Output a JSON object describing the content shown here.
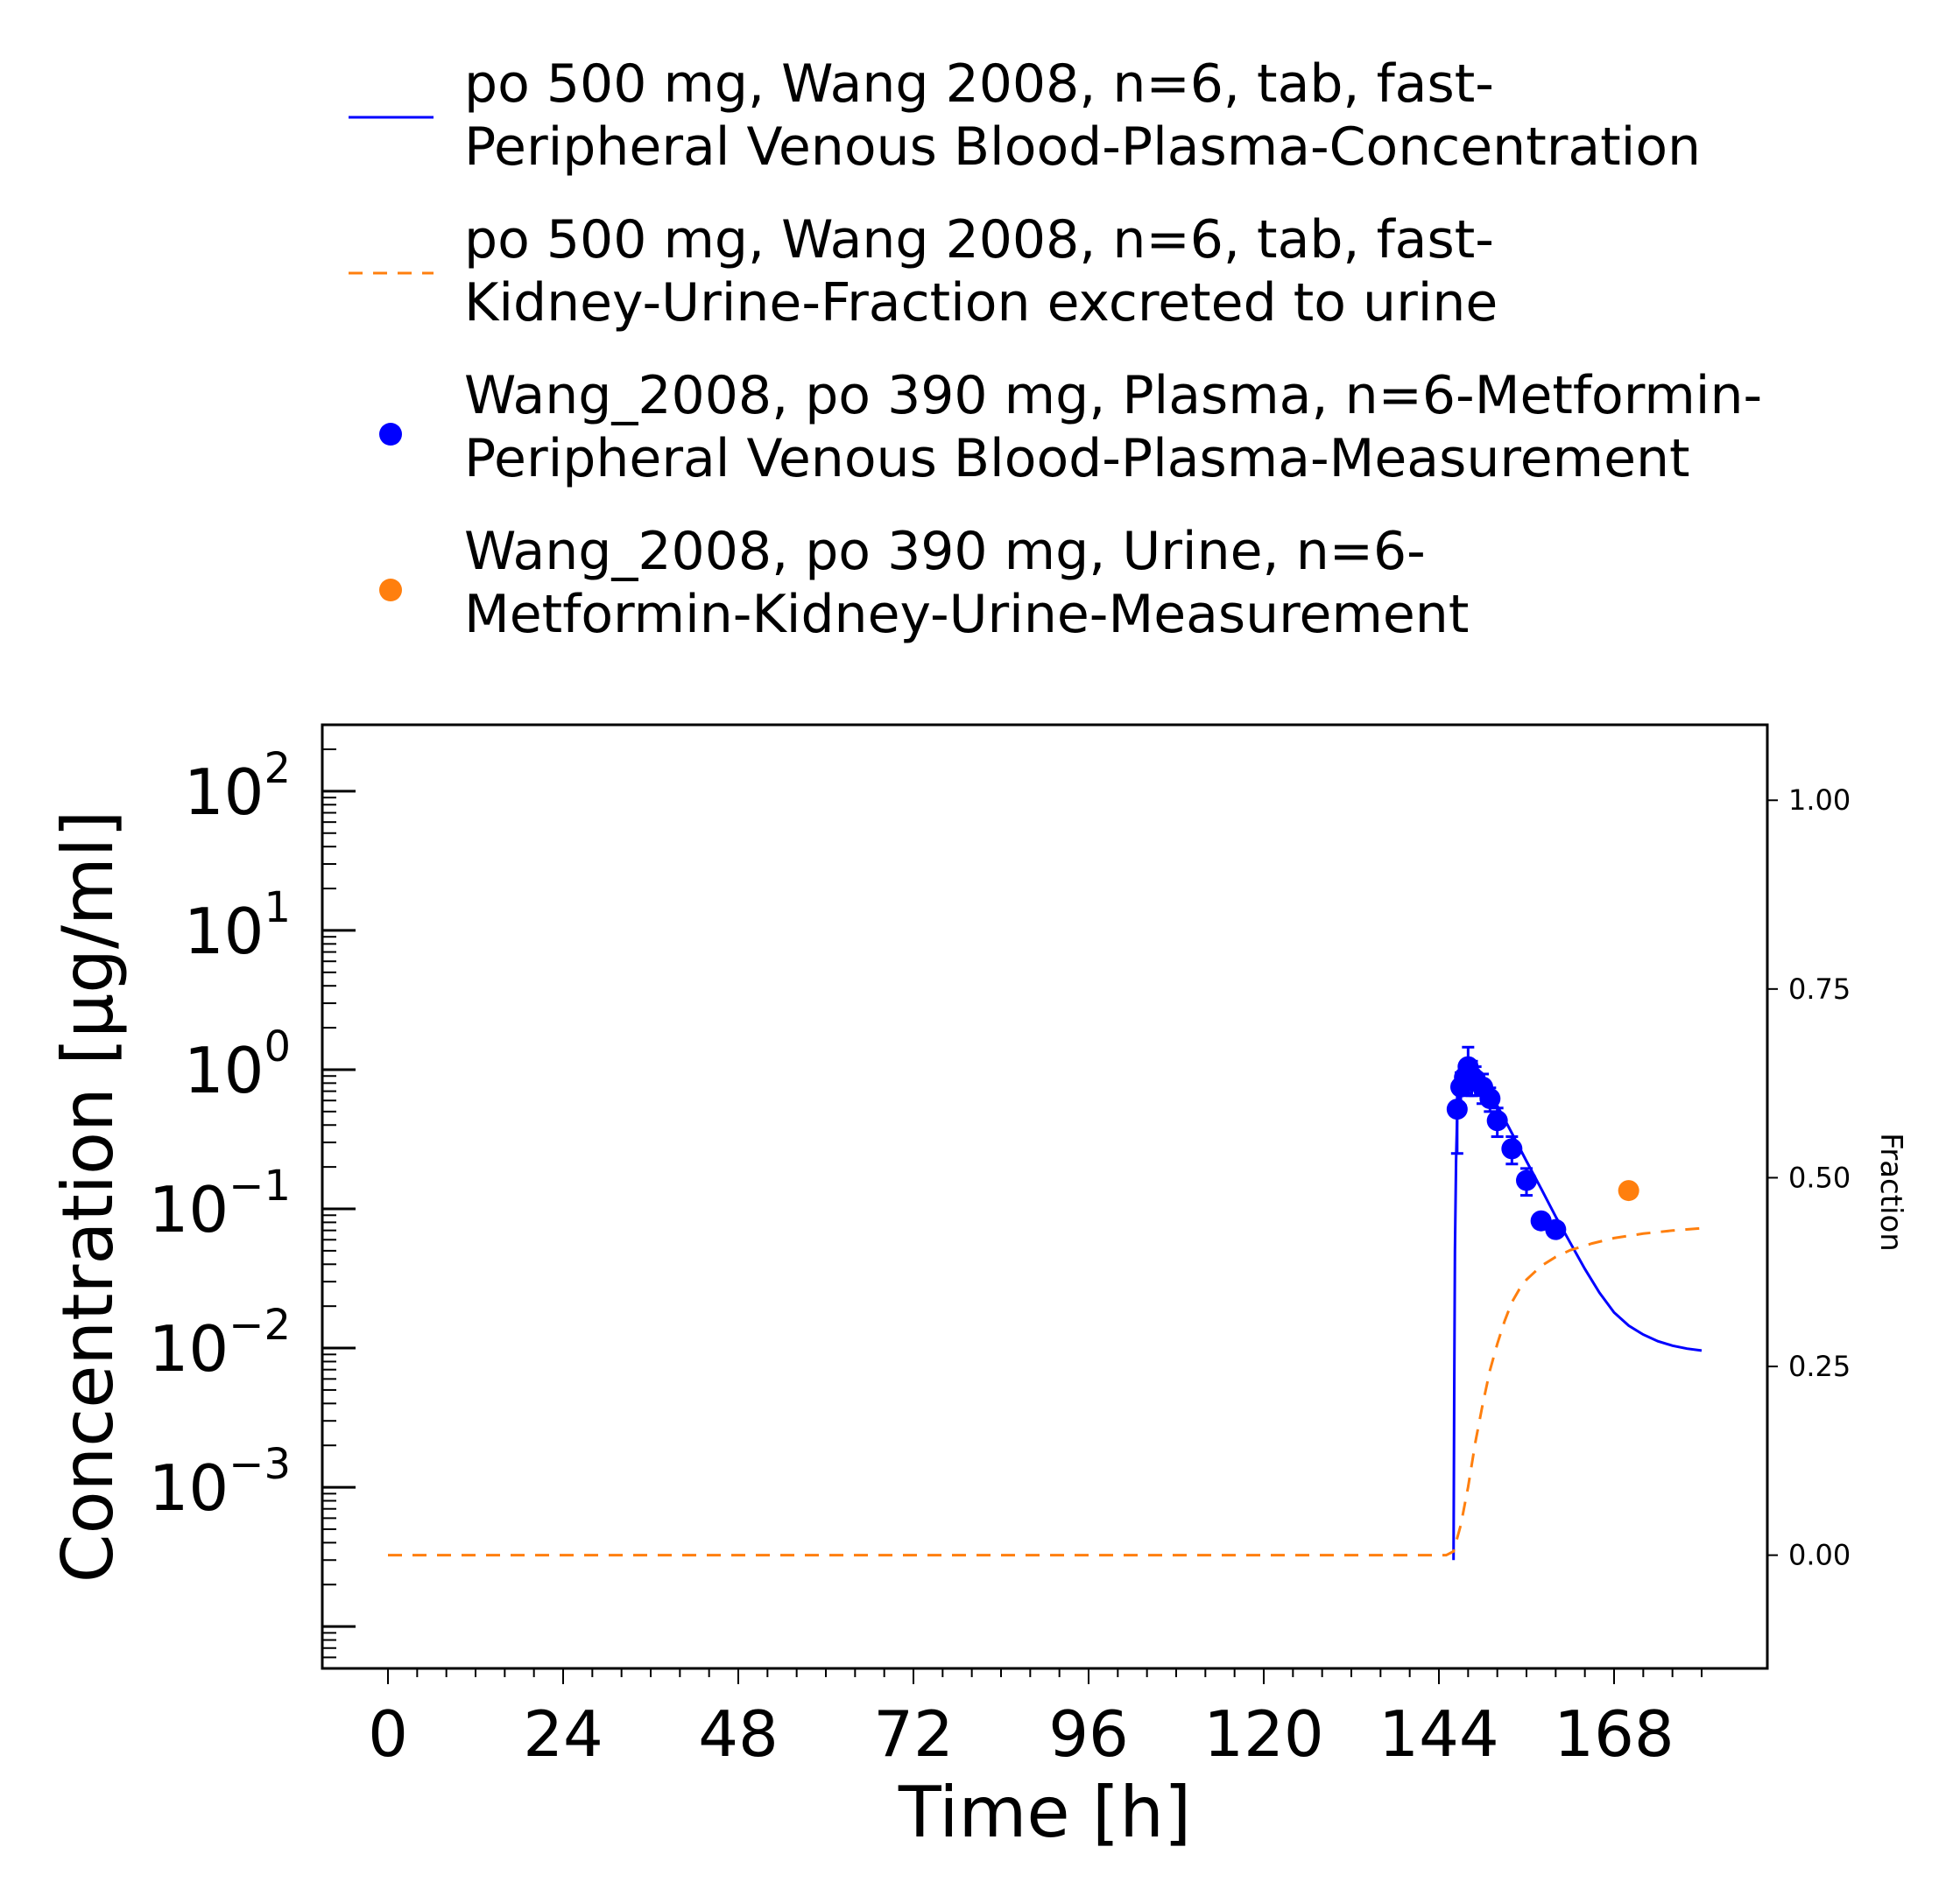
{
  "chart_data": {
    "type": "line",
    "xlabel": "Time [h]",
    "ylabel": "Concentration [µg/ml]",
    "y2label": "Fraction",
    "xlim": [
      -9,
      189
    ],
    "ylim": [
      5e-05,
      300
    ],
    "yscale": "log",
    "y2lim": [
      -0.15,
      1.1
    ],
    "x_ticks": [
      0,
      24,
      48,
      72,
      96,
      120,
      144,
      168
    ],
    "y_ticks": [
      {
        "value": 100,
        "base": "10",
        "exp": "2"
      },
      {
        "value": 10,
        "base": "10",
        "exp": "1"
      },
      {
        "value": 1,
        "base": "10",
        "exp": "0"
      },
      {
        "value": 0.1,
        "base": "10",
        "exp": "−1"
      },
      {
        "value": 0.01,
        "base": "10",
        "exp": "−2"
      },
      {
        "value": 0.001,
        "base": "10",
        "exp": "−3"
      }
    ],
    "y2_ticks": [
      {
        "value": 1.0,
        "label": "1.00"
      },
      {
        "value": 0.75,
        "label": "0.75"
      },
      {
        "value": 0.5,
        "label": "0.50"
      },
      {
        "value": 0.25,
        "label": "0.25"
      },
      {
        "value": 0.0,
        "label": "0.00"
      }
    ],
    "grid": false,
    "legend_position": "top",
    "series": [
      {
        "name": "po 500 mg, Wang 2008, n=6, tab, fast-\nPeripheral Venous Blood-Plasma-Concentration",
        "name_lines": [
          "po 500 mg, Wang 2008, n=6, tab, fast-",
          "Peripheral Venous Blood-Plasma-Concentration"
        ],
        "kind": "line",
        "axis": "left",
        "color": "#0000ff",
        "style": "solid",
        "x": [
          146.0,
          146.1,
          146.2,
          146.35,
          146.5,
          146.75,
          147.0,
          147.5,
          148.0,
          148.5,
          149.0,
          150.0,
          151.0,
          152.0,
          153.0,
          154.0,
          156.0,
          158.0,
          160.0,
          162.0,
          164.0,
          166.0,
          168.0,
          170.0,
          172.0,
          174.0,
          176.0,
          178.0,
          180.0
        ],
        "y": [
          0.0003,
          0.005,
          0.05,
          0.22,
          0.45,
          0.66,
          0.8,
          0.93,
          0.98,
          0.97,
          0.93,
          0.82,
          0.68,
          0.55,
          0.44,
          0.35,
          0.22,
          0.14,
          0.088,
          0.057,
          0.037,
          0.025,
          0.018,
          0.0145,
          0.0125,
          0.0112,
          0.0104,
          0.0099,
          0.0096
        ]
      },
      {
        "name": "po 500 mg, Wang 2008, n=6, tab, fast-\nKidney-Urine-Fraction excreted to urine",
        "name_lines": [
          "po 500 mg, Wang 2008, n=6, tab, fast-",
          "Kidney-Urine-Fraction excreted to urine"
        ],
        "kind": "line",
        "axis": "right",
        "color": "#ff7f0e",
        "style": "dashed",
        "x": [
          0,
          145,
          146,
          147,
          148,
          149,
          150,
          151,
          152,
          153,
          154,
          155,
          156,
          158,
          160,
          162,
          165,
          168,
          172,
          176,
          180
        ],
        "y": [
          0.0,
          0.0,
          0.005,
          0.04,
          0.09,
          0.15,
          0.2,
          0.245,
          0.28,
          0.31,
          0.335,
          0.352,
          0.365,
          0.383,
          0.395,
          0.404,
          0.413,
          0.42,
          0.426,
          0.43,
          0.433
        ]
      },
      {
        "name": "Wang_2008, po 390 mg, Plasma, n=6-Metformin-\nPeripheral Venous Blood-Plasma-Measurement",
        "name_lines": [
          "Wang_2008, po 390 mg, Plasma, n=6-Metformin-",
          "Peripheral Venous Blood-Plasma-Measurement"
        ],
        "kind": "scatter",
        "axis": "left",
        "color": "#0000ff",
        "points": [
          {
            "x": 146.5,
            "y": 0.52,
            "err": 0.27
          },
          {
            "x": 147.0,
            "y": 0.75,
            "err": 0.2
          },
          {
            "x": 147.5,
            "y": 0.88,
            "err": 0.2
          },
          {
            "x": 148.0,
            "y": 1.05,
            "err": 0.4
          },
          {
            "x": 148.5,
            "y": 0.9,
            "err": 0.25
          },
          {
            "x": 149.0,
            "y": 0.85,
            "err": 0.2
          },
          {
            "x": 150.0,
            "y": 0.75,
            "err": 0.18
          },
          {
            "x": 151.0,
            "y": 0.62,
            "err": 0.12
          },
          {
            "x": 152.0,
            "y": 0.43,
            "err": 0.1
          },
          {
            "x": 154.0,
            "y": 0.27,
            "err": 0.06
          },
          {
            "x": 156.0,
            "y": 0.16,
            "err": 0.035
          },
          {
            "x": 158.0,
            "y": 0.082,
            "err": 0.008
          },
          {
            "x": 160.0,
            "y": 0.071,
            "err": 0.006
          }
        ]
      },
      {
        "name": "Wang_2008, po 390 mg, Urine, n=6-\nMetformin-Kidney-Urine-Measurement",
        "name_lines": [
          "Wang_2008, po 390 mg, Urine, n=6-",
          "Metformin-Kidney-Urine-Measurement"
        ],
        "kind": "scatter",
        "axis": "right",
        "color": "#ff7f0e",
        "points": [
          {
            "x": 170.0,
            "y": 0.483
          }
        ]
      }
    ]
  }
}
